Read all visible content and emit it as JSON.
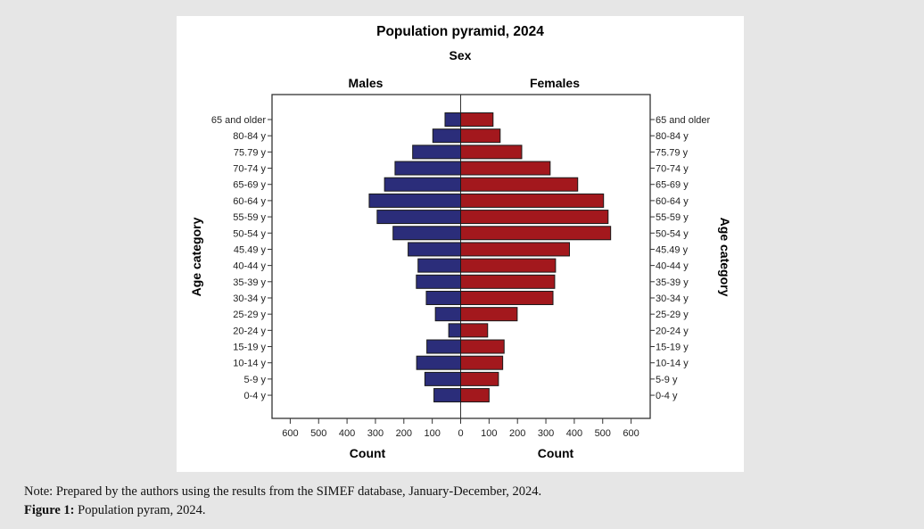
{
  "chart_data": {
    "type": "bar",
    "orientation": "horizontal-pyramid",
    "title": "Population pyramid, 2024",
    "subtitle": "Sex",
    "panels": [
      "Males",
      "Females"
    ],
    "xlabel_left": "Count",
    "xlabel_right": "Count",
    "ylabel_left": "Age category",
    "ylabel_right": "Age category",
    "xlim": [
      0,
      650
    ],
    "xticks": [
      0,
      100,
      200,
      300,
      400,
      500,
      600
    ],
    "grid": false,
    "categories": [
      "65 and older",
      "80-84 y",
      "75.79 y",
      "70-74 y",
      "65-69 y",
      "60-64 y",
      "55-59 y",
      "50-54 y",
      "45.49 y",
      "40-44 y",
      "35-39 y",
      "30-34 y",
      "25-29 y",
      "20-24 y",
      "15-19 y",
      "10-14 y",
      "5-9 y",
      "0-4 y"
    ],
    "series": [
      {
        "name": "Males",
        "color": "#2b2d7a",
        "values": [
          55,
          98,
          169,
          231,
          268,
          322,
          294,
          238,
          185,
          150,
          156,
          121,
          89,
          42,
          119,
          155,
          126,
          94
        ]
      },
      {
        "name": "Females",
        "color": "#a3181d",
        "values": [
          114,
          139,
          215,
          315,
          412,
          503,
          519,
          528,
          383,
          334,
          331,
          325,
          199,
          95,
          153,
          148,
          133,
          100
        ]
      }
    ]
  },
  "caption": {
    "note": "Note: Prepared by the authors using the results from the SIMEF database, January-December, 2024.",
    "figure_label": "Figure 1:",
    "figure_text": " Population pyram, 2024."
  }
}
